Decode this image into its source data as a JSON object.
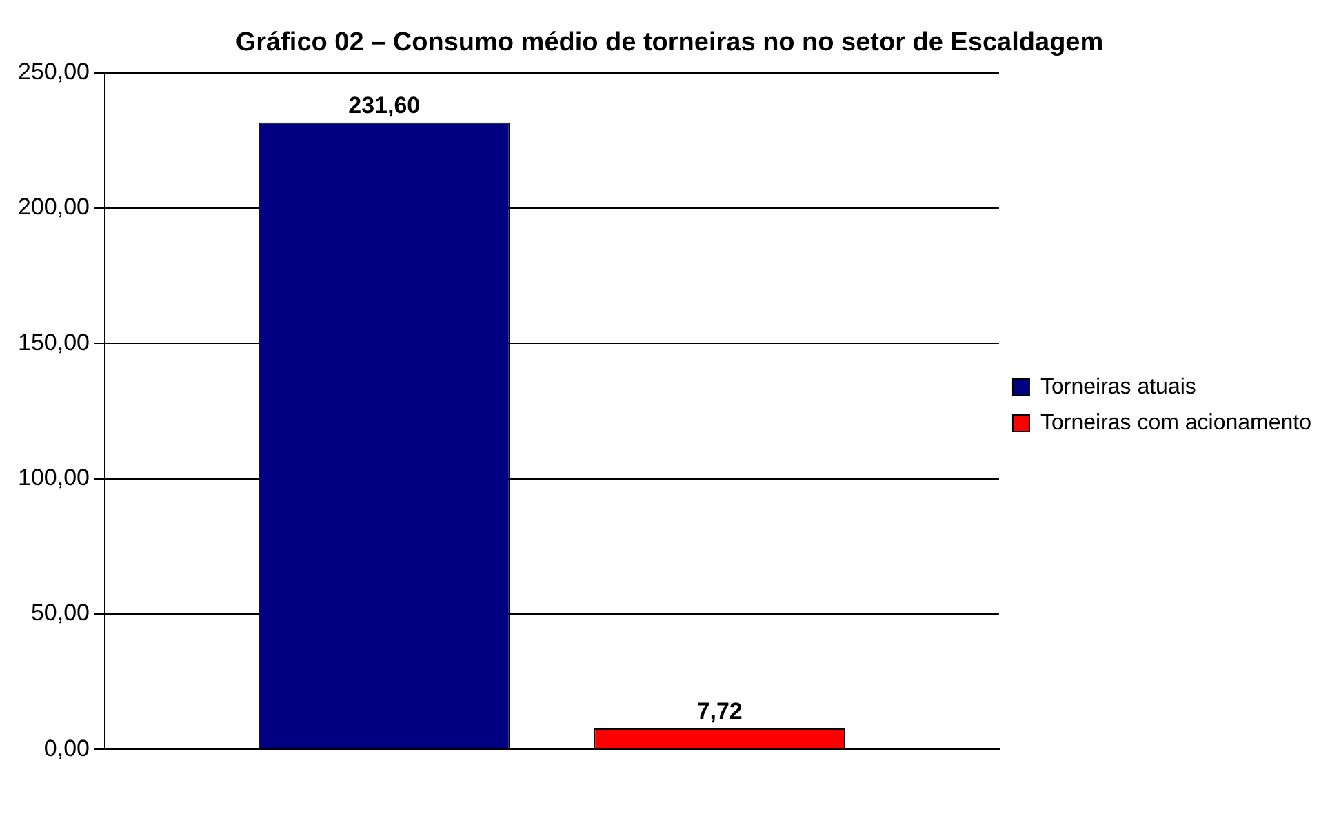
{
  "chart_data": {
    "type": "bar",
    "title": "Gráfico 02 – Consumo médio de torneiras no no setor de Escaldagem",
    "categories": [
      null
    ],
    "series": [
      {
        "name": "Torneiras atuais",
        "color": "#000080",
        "values": [
          231.6
        ],
        "value_labels": [
          "231,60"
        ]
      },
      {
        "name": "Torneiras com acionamento",
        "color": "#ff0000",
        "values": [
          7.72
        ],
        "value_labels": [
          "7,72"
        ]
      }
    ],
    "ylim": [
      0,
      250
    ],
    "yticks": [
      {
        "value": 0,
        "label": "0,00"
      },
      {
        "value": 50,
        "label": "50,00"
      },
      {
        "value": 100,
        "label": "100,00"
      },
      {
        "value": 150,
        "label": "150,00"
      },
      {
        "value": 200,
        "label": "200,00"
      },
      {
        "value": 250,
        "label": "250,00"
      }
    ],
    "grid": "y",
    "legend": "right"
  }
}
